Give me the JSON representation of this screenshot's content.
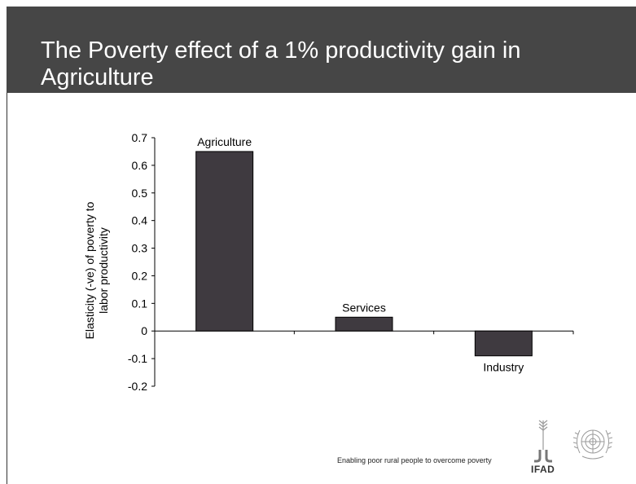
{
  "slide": {
    "title": "The Poverty effect of a 1% productivity gain in Agriculture",
    "footer_tagline": "Enabling poor rural people to overcome poverty",
    "logo_text": "IFAD"
  },
  "colors": {
    "header_bg": "#464646",
    "bar_fill": "#3f3a40",
    "axis": "#000000"
  },
  "chart_data": {
    "type": "bar",
    "title": "",
    "xlabel": "",
    "ylabel": "Elasticity (-ve) of poverty to labor productivity",
    "categories": [
      "Agriculture",
      "Services",
      "Industry"
    ],
    "values": [
      0.65,
      0.05,
      -0.09
    ],
    "ylim": [
      -0.2,
      0.7
    ],
    "yticks": [
      "0.7",
      "0.6",
      "0.5",
      "0.4",
      "0.3",
      "0.2",
      "0.1",
      "0",
      "-0.1",
      "-0.2"
    ],
    "ytick_values": [
      0.7,
      0.6,
      0.5,
      0.4,
      0.3,
      0.2,
      0.1,
      0,
      -0.1,
      -0.2
    ],
    "grid": false,
    "legend": "none"
  }
}
